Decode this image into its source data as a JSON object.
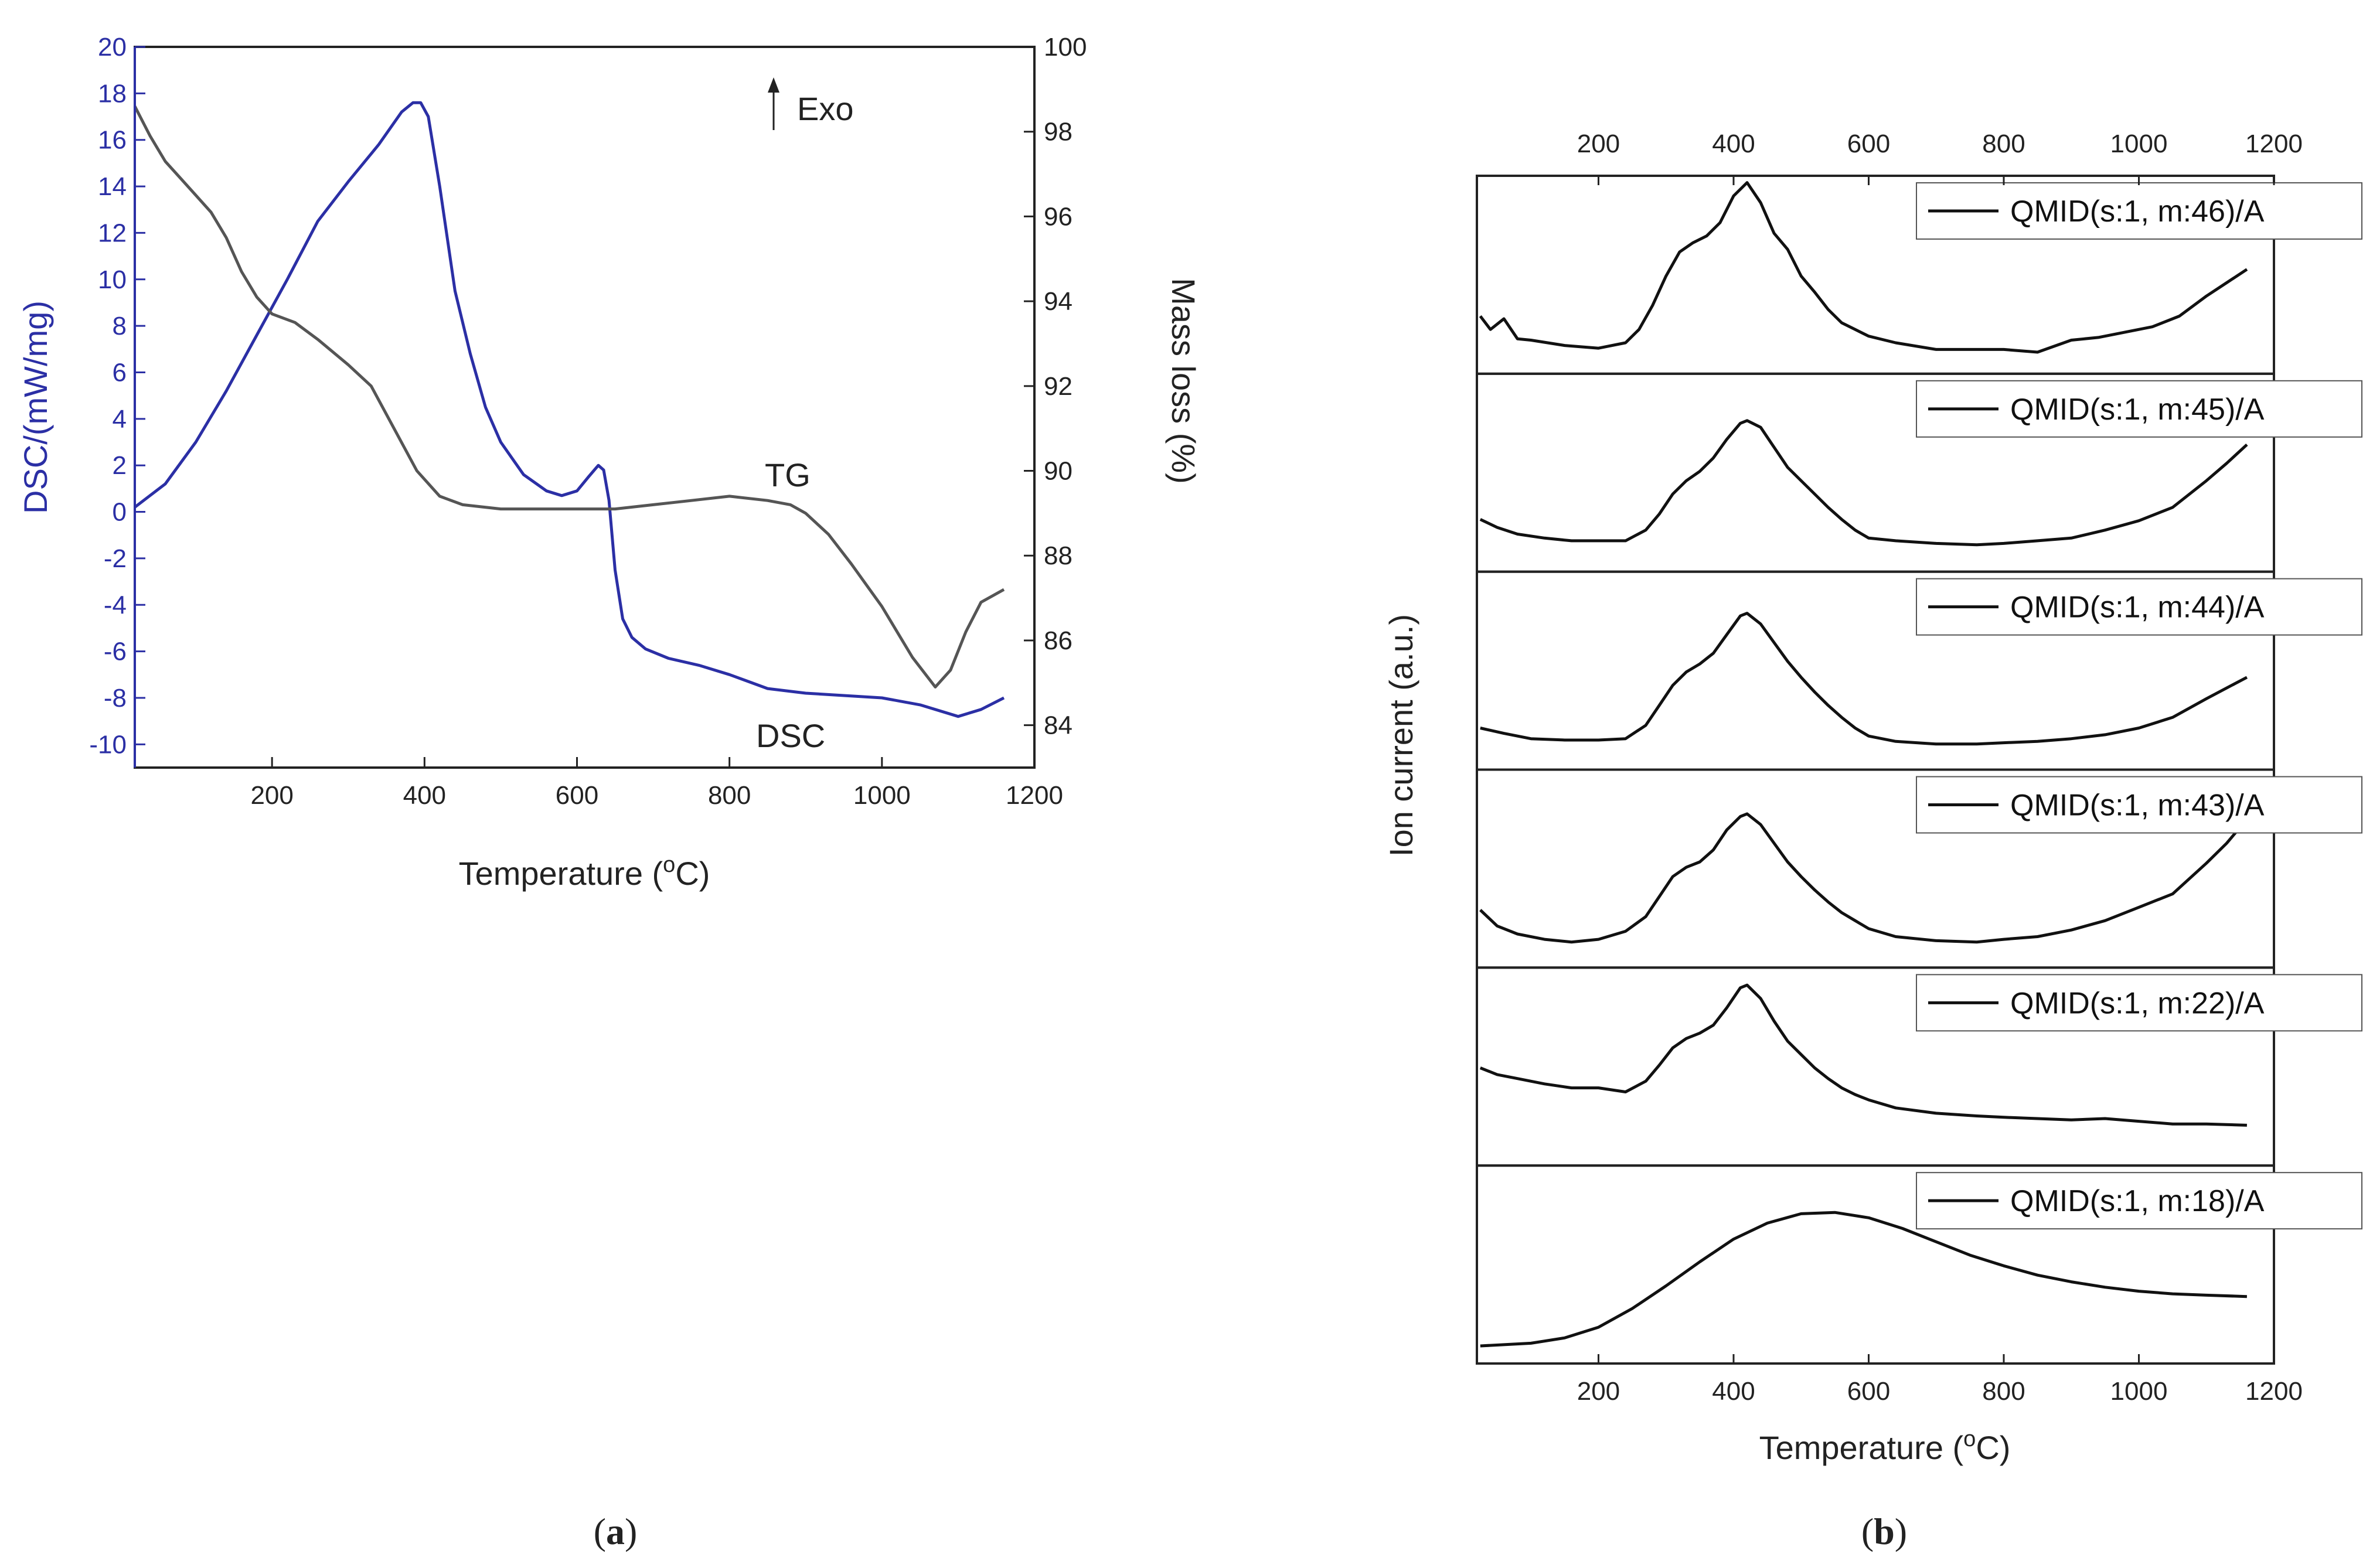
{
  "colors": {
    "dsc": "#2b2fa5",
    "tg": "#555555",
    "ms": "#111111",
    "axis": "#222222",
    "axis_left_a": "#2b2fa5"
  },
  "panels": {
    "a": {
      "caption_open": "(",
      "caption_letter": "a",
      "caption_close": ")",
      "annotation_exo": "Exo",
      "label_tg": "TG",
      "label_dsc": "DSC"
    },
    "b": {
      "caption_open": "(",
      "caption_letter": "b",
      "caption_close": ")"
    }
  },
  "chart_data": [
    {
      "type": "line",
      "title": "",
      "xlabel": "Temperature (°C)",
      "xlabel_parts": {
        "main": "Temperature (",
        "sup": "o",
        "end": "C)"
      },
      "ylabel": "DSC/(mW/mg)",
      "y2label": "Mass loss (%)",
      "xlim": [
        20,
        1200
      ],
      "ylim": [
        -11,
        20
      ],
      "y2lim": [
        83,
        100
      ],
      "xticks": [
        200,
        400,
        600,
        800,
        1000,
        1200
      ],
      "yticks": [
        -10,
        -8,
        -6,
        -4,
        -2,
        0,
        2,
        4,
        6,
        8,
        10,
        12,
        14,
        16,
        18,
        20
      ],
      "y2ticks": [
        84,
        86,
        88,
        90,
        92,
        94,
        96,
        98,
        100
      ],
      "series": [
        {
          "name": "DSC",
          "axis": "left",
          "x": [
            20,
            60,
            100,
            140,
            180,
            220,
            260,
            300,
            340,
            370,
            385,
            395,
            405,
            420,
            440,
            460,
            480,
            500,
            530,
            560,
            580,
            600,
            615,
            628,
            635,
            642,
            650,
            660,
            672,
            690,
            720,
            760,
            800,
            850,
            900,
            950,
            1000,
            1050,
            1100,
            1130,
            1160
          ],
          "y": [
            0.2,
            1.2,
            3.0,
            5.2,
            7.6,
            10.0,
            12.5,
            14.2,
            15.8,
            17.2,
            17.6,
            17.6,
            17.0,
            14.0,
            9.5,
            6.8,
            4.5,
            3.0,
            1.6,
            0.9,
            0.7,
            0.9,
            1.5,
            2.0,
            1.8,
            0.5,
            -2.5,
            -4.6,
            -5.4,
            -5.9,
            -6.3,
            -6.6,
            -7.0,
            -7.6,
            -7.8,
            -7.9,
            -8.0,
            -8.3,
            -8.8,
            -8.5,
            -8.0
          ]
        },
        {
          "name": "TG",
          "axis": "right",
          "x": [
            20,
            40,
            60,
            80,
            100,
            120,
            140,
            160,
            180,
            200,
            230,
            260,
            300,
            330,
            360,
            390,
            420,
            450,
            500,
            550,
            600,
            650,
            700,
            750,
            800,
            850,
            880,
            900,
            930,
            960,
            1000,
            1040,
            1070,
            1090,
            1110,
            1130,
            1160
          ],
          "y": [
            98.6,
            97.9,
            97.3,
            96.9,
            96.5,
            96.1,
            95.5,
            94.7,
            94.1,
            93.7,
            93.5,
            93.1,
            92.5,
            92.0,
            91.0,
            90.0,
            89.4,
            89.2,
            89.1,
            89.1,
            89.1,
            89.1,
            89.2,
            89.3,
            89.4,
            89.3,
            89.2,
            89.0,
            88.5,
            87.8,
            86.8,
            85.6,
            84.9,
            85.3,
            86.2,
            86.9,
            87.2
          ]
        }
      ]
    },
    {
      "type": "line",
      "title": "",
      "xlabel": "Temperature (°C)",
      "xlabel_parts": {
        "main": "Temperature (",
        "sup": "o",
        "end": "C)"
      },
      "ylabel": "Ion current (a.u.)",
      "xlim": [
        20,
        1200
      ],
      "xticks": [
        200,
        400,
        600,
        800,
        1000,
        1200
      ],
      "series": [
        {
          "name": "QMID(s:1, m:46)/A",
          "x": [
            25,
            40,
            60,
            80,
            100,
            150,
            200,
            240,
            260,
            280,
            300,
            320,
            340,
            360,
            380,
            400,
            420,
            440,
            460,
            480,
            500,
            520,
            540,
            560,
            580,
            600,
            640,
            700,
            760,
            800,
            850,
            900,
            940,
            980,
            1020,
            1060,
            1100,
            1130,
            1160
          ],
          "y": [
            0.3,
            0.2,
            0.28,
            0.13,
            0.12,
            0.08,
            0.06,
            0.1,
            0.2,
            0.38,
            0.6,
            0.78,
            0.85,
            0.9,
            1.0,
            1.2,
            1.3,
            1.15,
            0.92,
            0.8,
            0.6,
            0.48,
            0.35,
            0.25,
            0.2,
            0.15,
            0.1,
            0.05,
            0.05,
            0.05,
            0.03,
            0.12,
            0.14,
            0.18,
            0.22,
            0.3,
            0.45,
            0.55,
            0.65
          ]
        },
        {
          "name": "QMID(s:1, m:45)/A",
          "x": [
            25,
            50,
            80,
            120,
            160,
            200,
            240,
            270,
            290,
            310,
            330,
            350,
            370,
            390,
            410,
            420,
            440,
            460,
            480,
            500,
            520,
            540,
            560,
            580,
            600,
            640,
            700,
            760,
            800,
            850,
            900,
            950,
            1000,
            1050,
            1100,
            1130,
            1160
          ],
          "y": [
            0.26,
            0.2,
            0.15,
            0.12,
            0.1,
            0.1,
            0.1,
            0.18,
            0.3,
            0.45,
            0.55,
            0.62,
            0.72,
            0.86,
            0.98,
            1.0,
            0.95,
            0.8,
            0.65,
            0.55,
            0.45,
            0.35,
            0.26,
            0.18,
            0.12,
            0.1,
            0.08,
            0.07,
            0.08,
            0.1,
            0.12,
            0.18,
            0.25,
            0.35,
            0.55,
            0.68,
            0.82
          ]
        },
        {
          "name": "QMID(s:1, m:44)/A",
          "x": [
            25,
            60,
            100,
            150,
            200,
            240,
            270,
            290,
            310,
            330,
            350,
            370,
            390,
            410,
            420,
            440,
            460,
            480,
            500,
            520,
            540,
            560,
            580,
            600,
            640,
            700,
            760,
            800,
            850,
            900,
            950,
            1000,
            1050,
            1100,
            1160
          ],
          "y": [
            0.18,
            0.14,
            0.1,
            0.09,
            0.09,
            0.1,
            0.2,
            0.35,
            0.5,
            0.6,
            0.66,
            0.74,
            0.88,
            1.02,
            1.04,
            0.96,
            0.82,
            0.68,
            0.56,
            0.45,
            0.35,
            0.26,
            0.18,
            0.12,
            0.08,
            0.06,
            0.06,
            0.07,
            0.08,
            0.1,
            0.13,
            0.18,
            0.26,
            0.4,
            0.56
          ]
        },
        {
          "name": "QMID(s:1, m:43)/A",
          "x": [
            25,
            50,
            80,
            120,
            160,
            200,
            240,
            270,
            290,
            310,
            330,
            350,
            370,
            390,
            410,
            420,
            440,
            460,
            480,
            500,
            520,
            540,
            560,
            580,
            600,
            640,
            700,
            760,
            800,
            850,
            900,
            950,
            1000,
            1050,
            1100,
            1130,
            1160
          ],
          "y": [
            0.3,
            0.18,
            0.12,
            0.08,
            0.06,
            0.08,
            0.14,
            0.25,
            0.4,
            0.55,
            0.62,
            0.66,
            0.75,
            0.9,
            1.0,
            1.02,
            0.94,
            0.8,
            0.66,
            0.55,
            0.45,
            0.36,
            0.28,
            0.22,
            0.16,
            0.1,
            0.07,
            0.06,
            0.08,
            0.1,
            0.15,
            0.22,
            0.32,
            0.42,
            0.65,
            0.8,
            0.98
          ]
        },
        {
          "name": "QMID(s:1, m:22)/A",
          "x": [
            25,
            50,
            80,
            120,
            160,
            200,
            240,
            270,
            290,
            310,
            330,
            350,
            370,
            390,
            410,
            420,
            440,
            460,
            480,
            500,
            520,
            540,
            560,
            580,
            600,
            640,
            700,
            760,
            800,
            850,
            900,
            950,
            1000,
            1050,
            1100,
            1160
          ],
          "y": [
            0.6,
            0.55,
            0.52,
            0.48,
            0.45,
            0.45,
            0.42,
            0.5,
            0.62,
            0.75,
            0.82,
            0.86,
            0.92,
            1.05,
            1.2,
            1.22,
            1.12,
            0.95,
            0.8,
            0.7,
            0.6,
            0.52,
            0.45,
            0.4,
            0.36,
            0.3,
            0.26,
            0.24,
            0.23,
            0.22,
            0.21,
            0.22,
            0.2,
            0.18,
            0.18,
            0.17
          ]
        },
        {
          "name": "QMID(s:1, m:18)/A",
          "x": [
            25,
            100,
            150,
            200,
            250,
            300,
            350,
            400,
            450,
            500,
            550,
            600,
            650,
            700,
            750,
            800,
            850,
            900,
            950,
            1000,
            1050,
            1100,
            1160
          ],
          "y": [
            0.0,
            0.02,
            0.06,
            0.14,
            0.28,
            0.45,
            0.63,
            0.8,
            0.92,
            0.99,
            1.0,
            0.96,
            0.88,
            0.78,
            0.68,
            0.6,
            0.53,
            0.48,
            0.44,
            0.41,
            0.39,
            0.38,
            0.37
          ]
        }
      ]
    }
  ]
}
